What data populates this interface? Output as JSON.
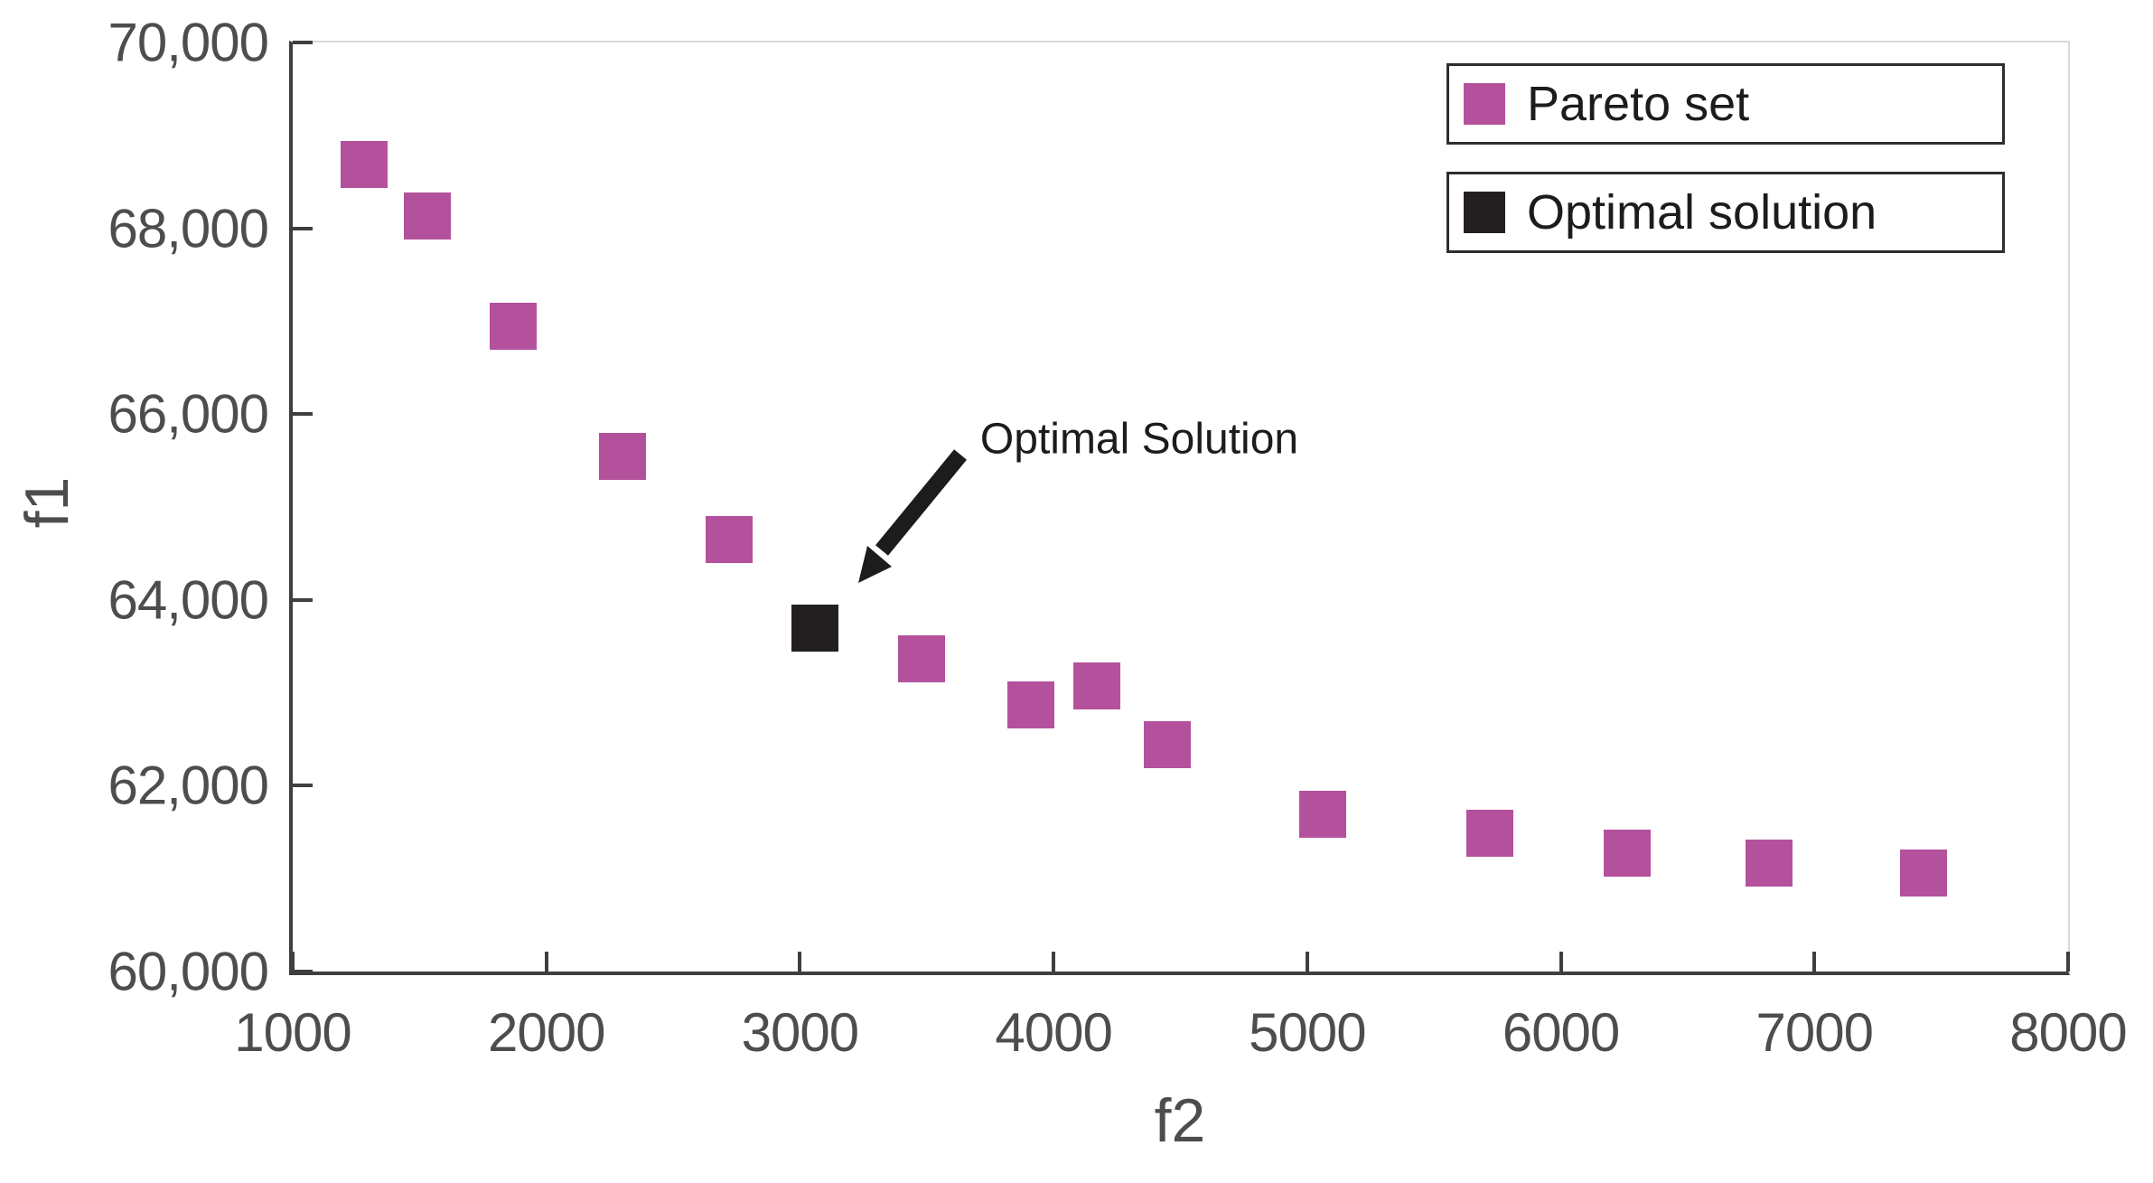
{
  "figure": {
    "background": "#ffffff"
  },
  "colors": {
    "pareto": "#b4519c",
    "optimal": "#231f20",
    "axis_dark": "#3f3f3f",
    "axis_light": "#d8d8d8",
    "tick_label": "#4d4d4d",
    "text": "#1c1c1c"
  },
  "chart_data": {
    "type": "scatter",
    "title": "",
    "xlabel": "f2",
    "ylabel": "f1",
    "xlim": [
      1000,
      8000
    ],
    "ylim": [
      60000,
      70000
    ],
    "grid": false,
    "marker": "square",
    "x_ticks": [
      {
        "value": 1000,
        "label": "1000"
      },
      {
        "value": 2000,
        "label": "2000"
      },
      {
        "value": 3000,
        "label": "3000"
      },
      {
        "value": 4000,
        "label": "4000"
      },
      {
        "value": 5000,
        "label": "5000"
      },
      {
        "value": 6000,
        "label": "6000"
      },
      {
        "value": 7000,
        "label": "7000"
      },
      {
        "value": 8000,
        "label": "8000"
      }
    ],
    "y_ticks": [
      {
        "value": 60000,
        "label": "60,000"
      },
      {
        "value": 62000,
        "label": "62,000"
      },
      {
        "value": 64000,
        "label": "64,000"
      },
      {
        "value": 66000,
        "label": "66,000"
      },
      {
        "value": 68000,
        "label": "68,000"
      },
      {
        "value": 70000,
        "label": "70,000"
      }
    ],
    "series": [
      {
        "name": "Pareto set",
        "color": "#b4519c",
        "points": [
          [
            1280,
            68690
          ],
          [
            1530,
            68130
          ],
          [
            1870,
            66950
          ],
          [
            2300,
            65540
          ],
          [
            2720,
            64650
          ],
          [
            3480,
            63370
          ],
          [
            3910,
            62870
          ],
          [
            4170,
            63070
          ],
          [
            4450,
            62440
          ],
          [
            5060,
            61690
          ],
          [
            5720,
            61490
          ],
          [
            6260,
            61270
          ],
          [
            6820,
            61170
          ],
          [
            7430,
            61060
          ]
        ]
      },
      {
        "name": "Optimal solution",
        "color": "#231f20",
        "points": [
          [
            3060,
            63700
          ]
        ]
      }
    ],
    "annotation": {
      "text": "Optimal Solution",
      "target_point": [
        3060,
        63700
      ]
    },
    "legend": {
      "position": "top-right",
      "entries": [
        {
          "label": "Pareto set",
          "color": "#b4519c"
        },
        {
          "label": "Optimal solution",
          "color": "#231f20"
        }
      ]
    }
  }
}
